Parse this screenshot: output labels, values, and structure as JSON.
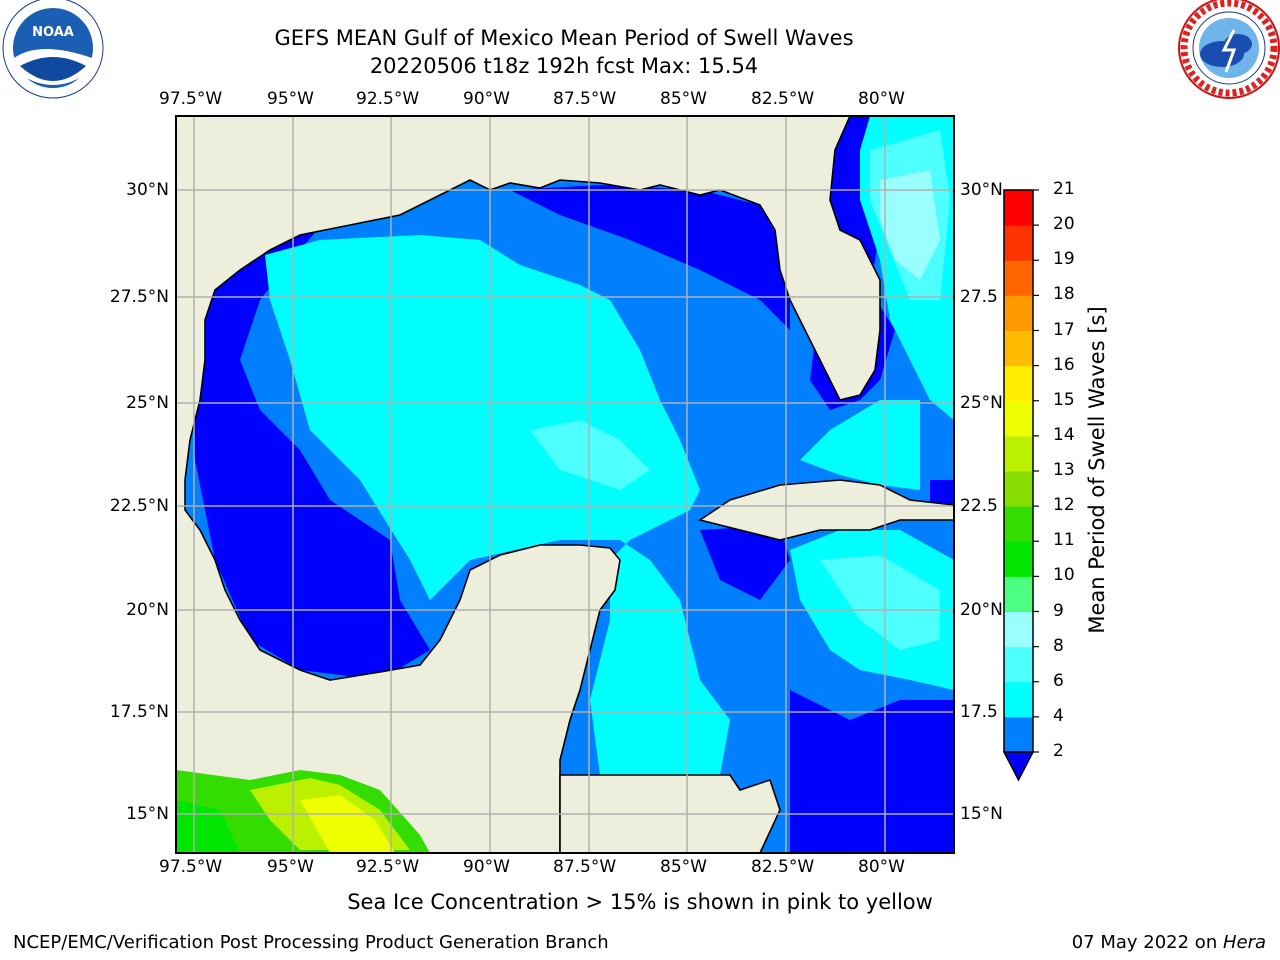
{
  "title_line1": "GEFS MEAN Gulf of Mexico Mean Period of Swell Waves",
  "title_line2": "20220506 t18z 192h fcst   Max: 15.54",
  "logos": {
    "left": "noaa-logo",
    "right": "nws-logo"
  },
  "lon_labels": [
    "97.5°W",
    "95°W",
    "92.5°W",
    "90°W",
    "87.5°W",
    "85°W",
    "82.5°W",
    "80°W"
  ],
  "lat_labels": [
    "30°N",
    "27.5°N",
    "25°N",
    "22.5°N",
    "20°N",
    "17.5°N",
    "15°N"
  ],
  "lat_labels_right": [
    "30°N",
    "27.5",
    "25°N",
    "22.5",
    "20°N",
    "17.5",
    "15°N"
  ],
  "colorbar": {
    "label": "Mean Period of Swell Waves [s]",
    "ticks": [
      "2",
      "4",
      "6",
      "8",
      "9",
      "10",
      "11",
      "12",
      "13",
      "14",
      "15",
      "16",
      "17",
      "18",
      "19",
      "20",
      "21"
    ],
    "colors": [
      "#0000ff",
      "#0080ff",
      "#00ffff",
      "#4dffff",
      "#99ffff",
      "#4dff80",
      "#00e600",
      "#33dd00",
      "#88dd00",
      "#bbf000",
      "#eeff00",
      "#ffee00",
      "#ffbb00",
      "#ff9900",
      "#ff6600",
      "#ff3300",
      "#ff0000"
    ]
  },
  "colors": {
    "land": "#eeeedd",
    "grid": "#b0b0b0",
    "coast": "#000000"
  },
  "footnote": "Sea Ice Concentration > 15% is shown in pink to yellow",
  "credit": "NCEP/EMC/Verification Post Processing Product Generation Branch",
  "date_prefix": "07 May 2022 on ",
  "date_host": "Hera"
}
